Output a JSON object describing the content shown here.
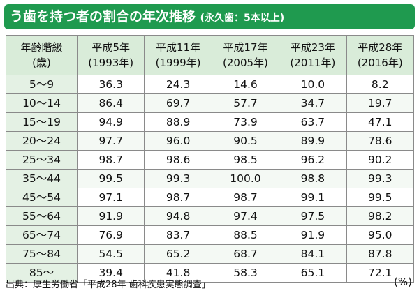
{
  "title": {
    "main": "う歯を持つ者の割合の年次推移",
    "sub": "(永久歯：5本以上)"
  },
  "table": {
    "header": [
      {
        "line1": "年齢階級",
        "line2": "(歳)"
      },
      {
        "line1": "平成5年",
        "line2": "(1993年)"
      },
      {
        "line1": "平成11年",
        "line2": "(1999年)"
      },
      {
        "line1": "平成17年",
        "line2": "(2005年)"
      },
      {
        "line1": "平成23年",
        "line2": "(2011年)"
      },
      {
        "line1": "平成28年",
        "line2": "(2016年)"
      }
    ],
    "rows": [
      {
        "age": "5〜9",
        "values": [
          "36.3",
          "24.3",
          "14.6",
          "10.0",
          "8.2"
        ]
      },
      {
        "age": "10〜14",
        "values": [
          "86.4",
          "69.7",
          "57.7",
          "34.7",
          "19.7"
        ]
      },
      {
        "age": "15〜19",
        "values": [
          "94.9",
          "88.9",
          "73.9",
          "63.7",
          "47.1"
        ]
      },
      {
        "age": "20〜24",
        "values": [
          "97.7",
          "96.0",
          "90.5",
          "89.9",
          "78.6"
        ]
      },
      {
        "age": "25〜34",
        "values": [
          "98.7",
          "98.6",
          "98.5",
          "96.2",
          "90.2"
        ]
      },
      {
        "age": "35〜44",
        "values": [
          "99.5",
          "99.3",
          "100.0",
          "98.8",
          "99.3"
        ]
      },
      {
        "age": "45〜54",
        "values": [
          "97.1",
          "98.7",
          "98.7",
          "99.1",
          "99.5"
        ]
      },
      {
        "age": "55〜64",
        "values": [
          "91.9",
          "94.8",
          "97.4",
          "97.5",
          "98.2"
        ]
      },
      {
        "age": "65〜74",
        "values": [
          "76.9",
          "83.7",
          "88.5",
          "91.9",
          "95.0"
        ]
      },
      {
        "age": "75〜84",
        "values": [
          "54.5",
          "65.2",
          "68.7",
          "84.1",
          "87.8"
        ]
      },
      {
        "age": "85〜",
        "values": [
          "39.4",
          "41.8",
          "58.3",
          "65.1",
          "72.1"
        ]
      }
    ]
  },
  "footer": {
    "source": "出典：厚生労働省「平成28年 歯科疾患実態調査」",
    "unit": "(%)"
  },
  "colors": {
    "title_bg": "#1f9a4f",
    "title_text": "#ffffff"
  }
}
